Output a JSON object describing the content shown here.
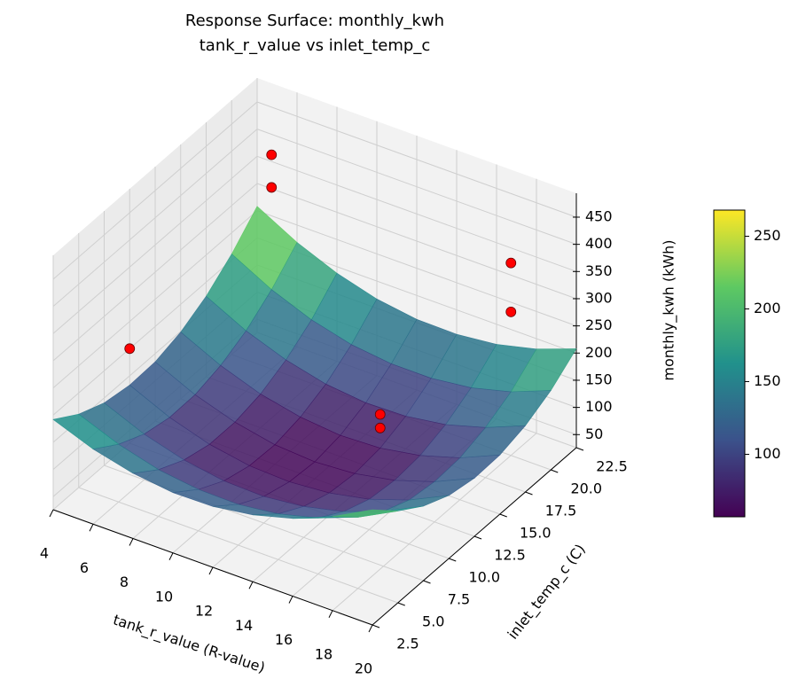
{
  "chart_data": {
    "type": "surface3d",
    "title_lines": [
      "Response Surface: monthly_kwh",
      "tank_r_value vs inlet_temp_c"
    ],
    "x_label": "tank_r_value (R-value)",
    "y_label": "inlet_temp_c (C)",
    "z_label": "monthly_kwh (kWh)",
    "xlim": [
      4,
      20
    ],
    "ylim": [
      2.5,
      22.5
    ],
    "zlim": [
      26,
      494
    ],
    "xticks": [
      4,
      6,
      8,
      10,
      12,
      14,
      16,
      18,
      20
    ],
    "yticks": [
      2.5,
      {
        "value": 5,
        "label": "5.0"
      },
      7.5,
      {
        "value": 10,
        "label": "10.0"
      },
      12.5,
      {
        "value": 15,
        "label": "15.0"
      },
      17.5,
      {
        "value": 20,
        "label": "20.0"
      },
      22.5
    ],
    "zticks": [
      50,
      100,
      150,
      200,
      250,
      300,
      350,
      400,
      450
    ],
    "grid": true,
    "surface": {
      "colormap": "viridis",
      "alpha": 0.85,
      "x": [
        4,
        6,
        8,
        10,
        12,
        14,
        16,
        18,
        20
      ],
      "y": [
        2.5,
        5,
        7.5,
        10,
        12.5,
        15,
        17.5,
        20,
        22.5
      ],
      "z": [
        [
          192,
          161,
          141,
          133,
          135,
          149,
          174,
          211,
          258
        ],
        [
          164,
          132,
          110,
          100,
          101,
          114,
          137,
          172,
          218
        ],
        [
          146,
          112,
          89,
          77,
          77,
          88,
          110,
          143,
          188
        ],
        [
          137,
          102,
          77,
          64,
          62,
          72,
          92,
          124,
          167
        ],
        [
          138,
          101,
          75,
          61,
          57,
          65,
          84,
          115,
          156
        ],
        [
          149,
          110,
          83,
          67,
          62,
          68,
          86,
          115,
          155
        ],
        [
          169,
          129,
          100,
          82,
          76,
          81,
          97,
          124,
          163
        ],
        [
          199,
          157,
          127,
          107,
          100,
          103,
          118,
          143,
          181
        ],
        [
          238,
          195,
          163,
          142,
          133,
          135,
          148,
          172,
          208
        ]
      ]
    },
    "colorbar": {
      "lim": [
        57,
        268
      ],
      "ticks": [
        100,
        150,
        200,
        250
      ]
    },
    "scatter": {
      "color": "#ff0000",
      "x": [
        6,
        6,
        18,
        18,
        4,
        14,
        14
      ],
      "y": [
        20,
        20,
        20,
        20,
        10,
        15,
        15
      ],
      "z": [
        420,
        360,
        380,
        290,
        200,
        130,
        105
      ]
    }
  }
}
